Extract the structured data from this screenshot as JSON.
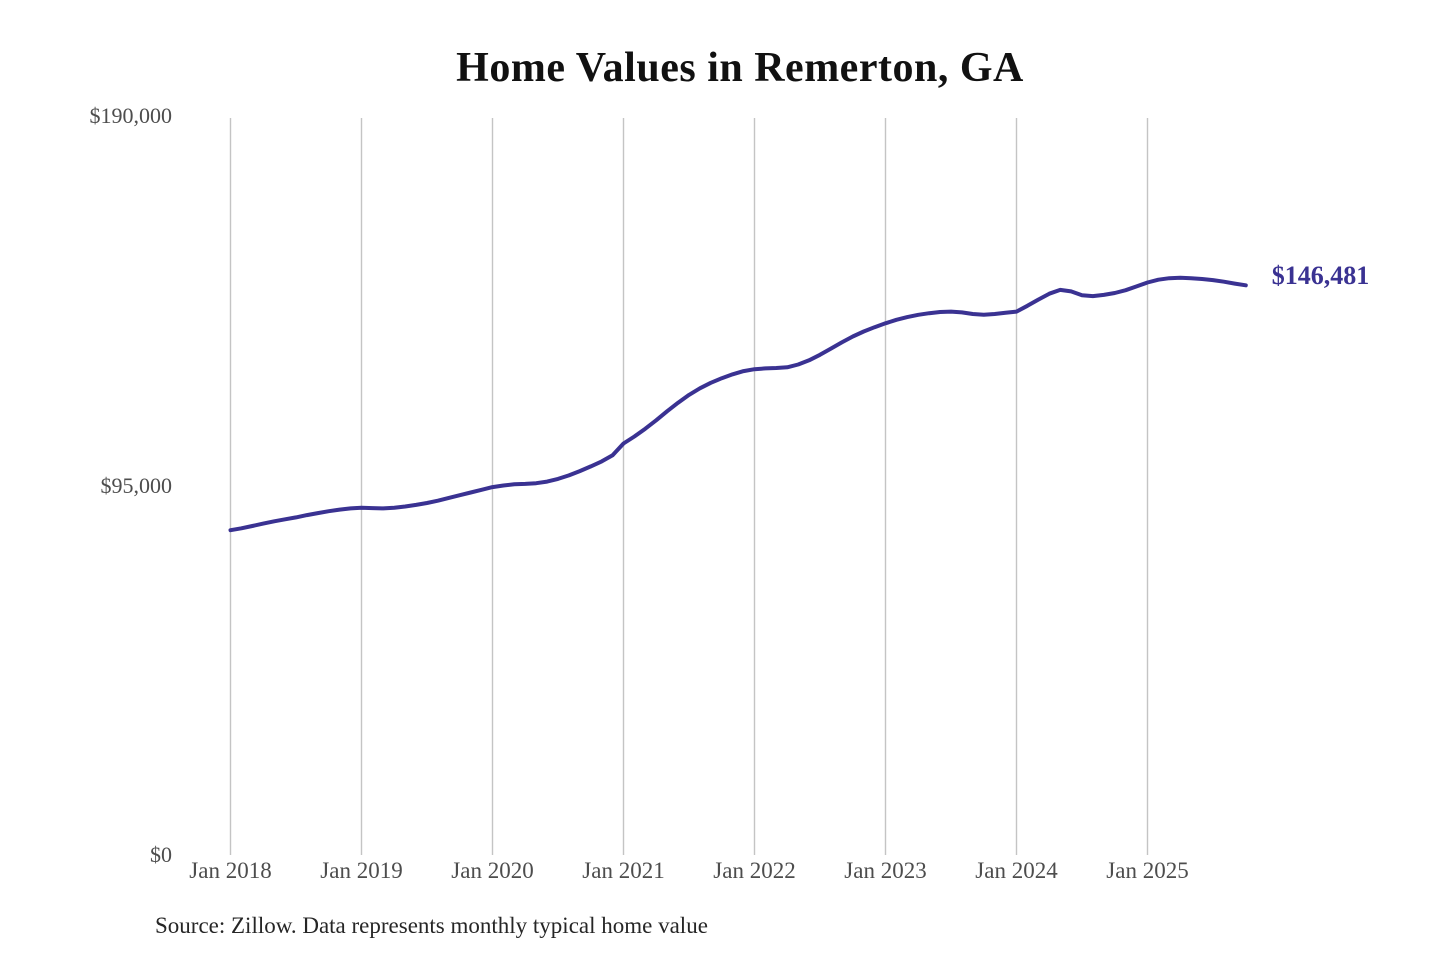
{
  "page": {
    "title": "Home Values in Remerton, GA",
    "source_note": "Source: Zillow. Data represents monthly typical home value"
  },
  "chart_data": {
    "type": "line",
    "title": "Home Values in Remerton, GA",
    "series_name": "Monthly typical home value",
    "x_start": "Jan 2018",
    "x_end": "Oct 2025",
    "x_interval": "monthly",
    "values": [
      83500,
      84000,
      84600,
      85200,
      85800,
      86300,
      86800,
      87400,
      87900,
      88400,
      88800,
      89100,
      89300,
      89200,
      89100,
      89300,
      89600,
      90000,
      90500,
      91100,
      91800,
      92500,
      93200,
      93900,
      94600,
      95000,
      95300,
      95400,
      95600,
      96000,
      96700,
      97600,
      98700,
      99900,
      101200,
      102800,
      105800,
      107600,
      109600,
      111800,
      114100,
      116300,
      118300,
      120000,
      121400,
      122600,
      123600,
      124400,
      124900,
      125100,
      125200,
      125400,
      126100,
      127200,
      128600,
      130200,
      131800,
      133300,
      134600,
      135700,
      136700,
      137600,
      138300,
      138900,
      139300,
      139600,
      139700,
      139500,
      139100,
      138900,
      139100,
      139400,
      139700,
      141200,
      142800,
      144300,
      145300,
      144900,
      143900,
      143700,
      144000,
      144500,
      145200,
      146200,
      147200,
      147900,
      148300,
      148400,
      148300,
      148100,
      147800,
      147400,
      146900,
      146481
    ],
    "end_value": 146481,
    "end_label": "$146,481",
    "x_tick_labels": [
      "Jan 2018",
      "Jan 2019",
      "Jan 2020",
      "Jan 2021",
      "Jan 2022",
      "Jan 2023",
      "Jan 2024",
      "Jan 2025"
    ],
    "y_ticks": [
      {
        "label": "$0",
        "value": 0
      },
      {
        "label": "$95,000",
        "value": 95000
      },
      {
        "label": "$190,000",
        "value": 190000
      }
    ],
    "ylim": [
      0,
      190000
    ],
    "grid": "vertical-only",
    "legend": "none",
    "colors": {
      "line": "#3a3292",
      "end_label": "#3a3292",
      "grid": "#c4c4c4",
      "axis_text": "#4d4d4d",
      "title_text": "#111111",
      "source_text": "#262626"
    }
  }
}
